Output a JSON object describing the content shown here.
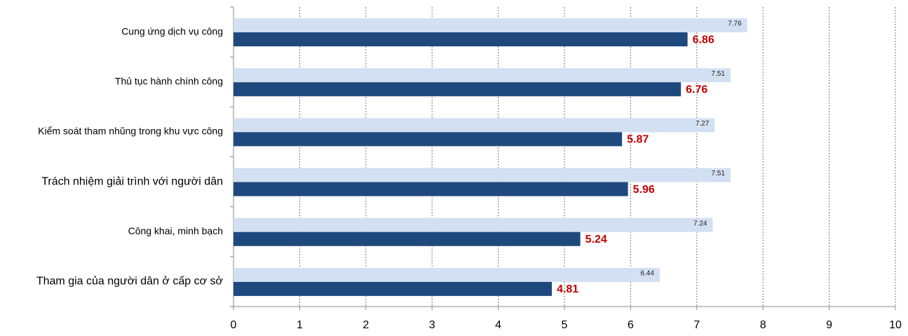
{
  "chart_data": {
    "type": "bar",
    "orientation": "horizontal",
    "categories": [
      "Cung ứng dịch vụ công",
      "Thủ tục hành chính công",
      "Kiểm soát tham nhũng trong khu vực công",
      "Trách nhiệm giải trình với người dân",
      "Công khai, minh bạch",
      "Tham gia của người dân ở cấp cơ sở"
    ],
    "series": [
      {
        "color": "#d3e0f2",
        "values": [
          7.76,
          7.51,
          7.27,
          7.51,
          7.24,
          6.44
        ]
      },
      {
        "color": "#1f497d",
        "values": [
          6.86,
          6.76,
          5.87,
          5.96,
          5.24,
          4.81
        ]
      }
    ],
    "xlim": [
      0,
      10
    ],
    "xticks": [
      0,
      1,
      2,
      3,
      4,
      5,
      6,
      7,
      8,
      9,
      10
    ],
    "grid": true
  }
}
